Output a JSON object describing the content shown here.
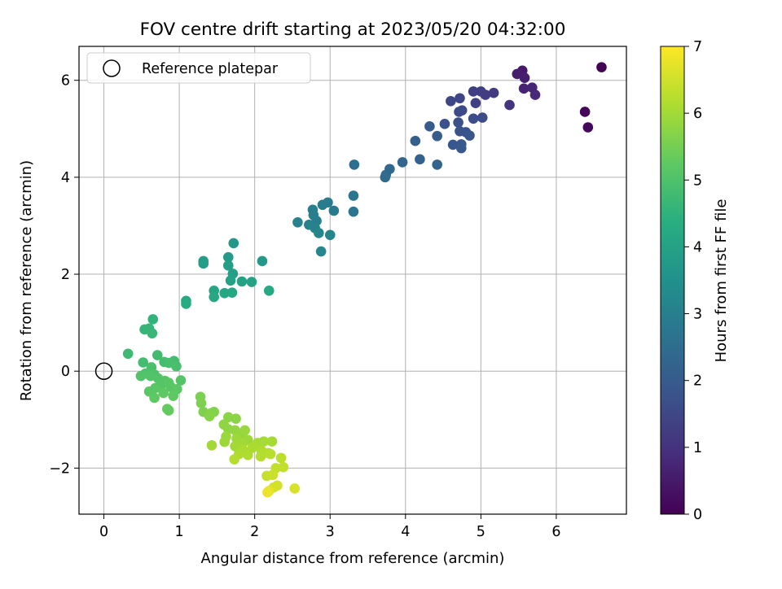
{
  "chart_data": {
    "type": "scatter",
    "title": "FOV centre drift starting at 2023/05/20 04:32:00",
    "xlabel": "Angular distance from reference (arcmin)",
    "ylabel": "Rotation from reference (arcmin)",
    "xlim": [
      -0.33,
      6.93
    ],
    "ylim": [
      -2.95,
      6.7
    ],
    "xticks": [
      0,
      1,
      2,
      3,
      4,
      5,
      6
    ],
    "yticks": [
      -2,
      0,
      2,
      4,
      6
    ],
    "xtick_labels": [
      "0",
      "1",
      "2",
      "3",
      "4",
      "5",
      "6"
    ],
    "ytick_labels": [
      "−2",
      "0",
      "2",
      "4",
      "6"
    ],
    "grid": true,
    "legend": {
      "placement": "upper-left",
      "entries": [
        {
          "label": "Reference platepar",
          "marker": "open-circle",
          "x": 0,
          "y": 0
        }
      ]
    },
    "colorbar": {
      "label": "Hours from first FF file",
      "colormap": "viridis",
      "range": [
        0,
        7
      ],
      "ticks": [
        0,
        1,
        2,
        3,
        4,
        5,
        6,
        7
      ],
      "tick_labels": [
        "0",
        "1",
        "2",
        "3",
        "4",
        "5",
        "6",
        "7"
      ]
    },
    "reference_point": {
      "x": 0,
      "y": 0
    },
    "series": [
      {
        "points": [
          [
            6.6,
            6.27,
            0.05
          ],
          [
            6.38,
            5.35,
            0.1
          ],
          [
            6.42,
            5.03,
            0.15
          ],
          [
            5.55,
            6.2,
            0.5
          ],
          [
            5.48,
            6.13,
            0.55
          ],
          [
            5.58,
            6.05,
            0.6
          ],
          [
            5.57,
            5.83,
            0.7
          ],
          [
            5.68,
            5.85,
            0.75
          ],
          [
            5.72,
            5.7,
            0.8
          ],
          [
            5.38,
            5.49,
            1.05
          ],
          [
            5.17,
            5.74,
            1.2
          ],
          [
            5.06,
            5.7,
            1.25
          ],
          [
            4.9,
            5.77,
            1.3
          ],
          [
            5.0,
            5.77,
            1.3
          ],
          [
            4.93,
            5.53,
            1.35
          ],
          [
            4.72,
            5.63,
            1.45
          ],
          [
            4.6,
            5.57,
            1.5
          ],
          [
            4.75,
            5.38,
            1.55
          ],
          [
            4.71,
            5.35,
            1.6
          ],
          [
            5.02,
            5.23,
            1.6
          ],
          [
            4.9,
            5.21,
            1.65
          ],
          [
            4.7,
            5.13,
            1.7
          ],
          [
            4.52,
            5.1,
            1.75
          ],
          [
            4.72,
            4.95,
            1.8
          ],
          [
            4.8,
            4.93,
            1.8
          ],
          [
            4.85,
            4.86,
            1.85
          ],
          [
            4.63,
            4.67,
            1.9
          ],
          [
            4.74,
            4.68,
            1.9
          ],
          [
            4.74,
            4.6,
            1.95
          ],
          [
            4.32,
            5.05,
            2.0
          ],
          [
            4.42,
            4.85,
            2.05
          ],
          [
            4.13,
            4.75,
            2.1
          ],
          [
            4.19,
            4.37,
            2.2
          ],
          [
            4.42,
            4.26,
            2.25
          ],
          [
            3.96,
            4.31,
            2.3
          ],
          [
            3.79,
            4.17,
            2.35
          ],
          [
            3.74,
            4.05,
            2.4
          ],
          [
            3.73,
            4.0,
            2.45
          ],
          [
            3.32,
            4.26,
            2.55
          ],
          [
            3.31,
            3.62,
            2.7
          ],
          [
            3.31,
            3.29,
            2.75
          ],
          [
            3.05,
            3.31,
            2.85
          ],
          [
            2.97,
            3.48,
            2.9
          ],
          [
            2.9,
            3.43,
            2.9
          ],
          [
            2.77,
            3.33,
            2.95
          ],
          [
            2.78,
            3.22,
            3.0
          ],
          [
            2.82,
            3.1,
            3.0
          ],
          [
            2.72,
            3.02,
            3.05
          ],
          [
            2.57,
            3.07,
            3.1
          ],
          [
            2.8,
            2.95,
            3.1
          ],
          [
            2.85,
            2.85,
            3.15
          ],
          [
            3.0,
            2.81,
            3.15
          ],
          [
            2.88,
            2.47,
            3.2
          ],
          [
            1.72,
            2.64,
            3.7
          ],
          [
            2.1,
            2.27,
            3.75
          ],
          [
            1.65,
            2.35,
            3.8
          ],
          [
            1.32,
            2.27,
            3.85
          ],
          [
            1.32,
            2.22,
            3.85
          ],
          [
            1.65,
            2.18,
            3.9
          ],
          [
            1.71,
            2.01,
            3.95
          ],
          [
            1.68,
            1.87,
            4.0
          ],
          [
            1.83,
            1.85,
            4.0
          ],
          [
            1.96,
            1.84,
            4.05
          ],
          [
            1.46,
            1.66,
            4.1
          ],
          [
            1.6,
            1.61,
            4.15
          ],
          [
            1.7,
            1.62,
            4.15
          ],
          [
            2.19,
            1.66,
            4.2
          ],
          [
            1.46,
            1.53,
            4.2
          ],
          [
            1.09,
            1.45,
            4.25
          ],
          [
            1.09,
            1.39,
            4.3
          ],
          [
            0.65,
            1.07,
            4.55
          ],
          [
            0.54,
            0.86,
            4.6
          ],
          [
            0.6,
            0.88,
            4.6
          ],
          [
            0.64,
            0.78,
            4.65
          ],
          [
            0.32,
            0.36,
            4.75
          ],
          [
            0.71,
            0.33,
            4.8
          ],
          [
            0.8,
            0.19,
            4.85
          ],
          [
            0.52,
            0.18,
            4.85
          ],
          [
            0.93,
            0.21,
            4.85
          ],
          [
            0.86,
            0.17,
            4.9
          ],
          [
            0.96,
            0.1,
            4.9
          ],
          [
            0.63,
            0.08,
            4.95
          ],
          [
            0.55,
            -0.05,
            5.0
          ],
          [
            0.67,
            -0.07,
            5.0
          ],
          [
            0.49,
            -0.1,
            5.05
          ],
          [
            0.62,
            -0.1,
            5.05
          ],
          [
            0.72,
            -0.15,
            5.05
          ],
          [
            0.81,
            -0.2,
            5.1
          ],
          [
            1.02,
            -0.19,
            5.1
          ],
          [
            0.77,
            -0.27,
            5.1
          ],
          [
            0.86,
            -0.24,
            5.15
          ],
          [
            0.89,
            -0.33,
            5.15
          ],
          [
            0.68,
            -0.35,
            5.2
          ],
          [
            0.6,
            -0.42,
            5.2
          ],
          [
            0.97,
            -0.37,
            5.2
          ],
          [
            0.79,
            -0.45,
            5.25
          ],
          [
            0.92,
            -0.51,
            5.25
          ],
          [
            0.67,
            -0.55,
            5.25
          ],
          [
            0.84,
            -0.78,
            5.3
          ],
          [
            0.86,
            -0.81,
            5.3
          ],
          [
            1.28,
            -0.53,
            5.55
          ],
          [
            1.29,
            -0.66,
            5.6
          ],
          [
            1.32,
            -0.84,
            5.6
          ],
          [
            1.42,
            -0.87,
            5.65
          ],
          [
            1.46,
            -0.84,
            5.65
          ],
          [
            1.4,
            -0.93,
            5.7
          ],
          [
            1.65,
            -0.95,
            5.75
          ],
          [
            1.75,
            -0.98,
            5.75
          ],
          [
            1.59,
            -1.1,
            5.8
          ],
          [
            1.65,
            -1.2,
            5.8
          ],
          [
            1.74,
            -1.22,
            5.85
          ],
          [
            1.83,
            -1.29,
            5.85
          ],
          [
            1.87,
            -1.22,
            5.9
          ],
          [
            1.62,
            -1.35,
            5.9
          ],
          [
            1.76,
            -1.39,
            5.95
          ],
          [
            1.91,
            -1.42,
            5.95
          ],
          [
            1.6,
            -1.46,
            5.95
          ],
          [
            1.43,
            -1.53,
            6.0
          ],
          [
            1.74,
            -1.55,
            6.0
          ],
          [
            1.84,
            -1.49,
            6.0
          ],
          [
            2.04,
            -1.48,
            6.05
          ],
          [
            2.12,
            -1.45,
            6.05
          ],
          [
            2.23,
            -1.45,
            6.05
          ],
          [
            1.97,
            -1.58,
            6.1
          ],
          [
            1.84,
            -1.62,
            6.1
          ],
          [
            1.79,
            -1.71,
            6.15
          ],
          [
            1.91,
            -1.73,
            6.15
          ],
          [
            2.09,
            -1.64,
            6.15
          ],
          [
            2.18,
            -1.69,
            6.2
          ],
          [
            2.08,
            -1.76,
            6.2
          ],
          [
            1.73,
            -1.82,
            6.2
          ],
          [
            2.21,
            -1.71,
            6.25
          ],
          [
            2.35,
            -1.79,
            6.3
          ],
          [
            2.38,
            -1.98,
            6.35
          ],
          [
            2.28,
            -2.0,
            6.35
          ],
          [
            2.16,
            -2.16,
            6.4
          ],
          [
            2.24,
            -2.14,
            6.45
          ],
          [
            2.3,
            -2.36,
            6.55
          ],
          [
            2.25,
            -2.4,
            6.55
          ],
          [
            2.53,
            -2.42,
            6.6
          ],
          [
            2.19,
            -2.47,
            6.7
          ],
          [
            2.17,
            -2.5,
            6.8
          ]
        ]
      }
    ]
  }
}
